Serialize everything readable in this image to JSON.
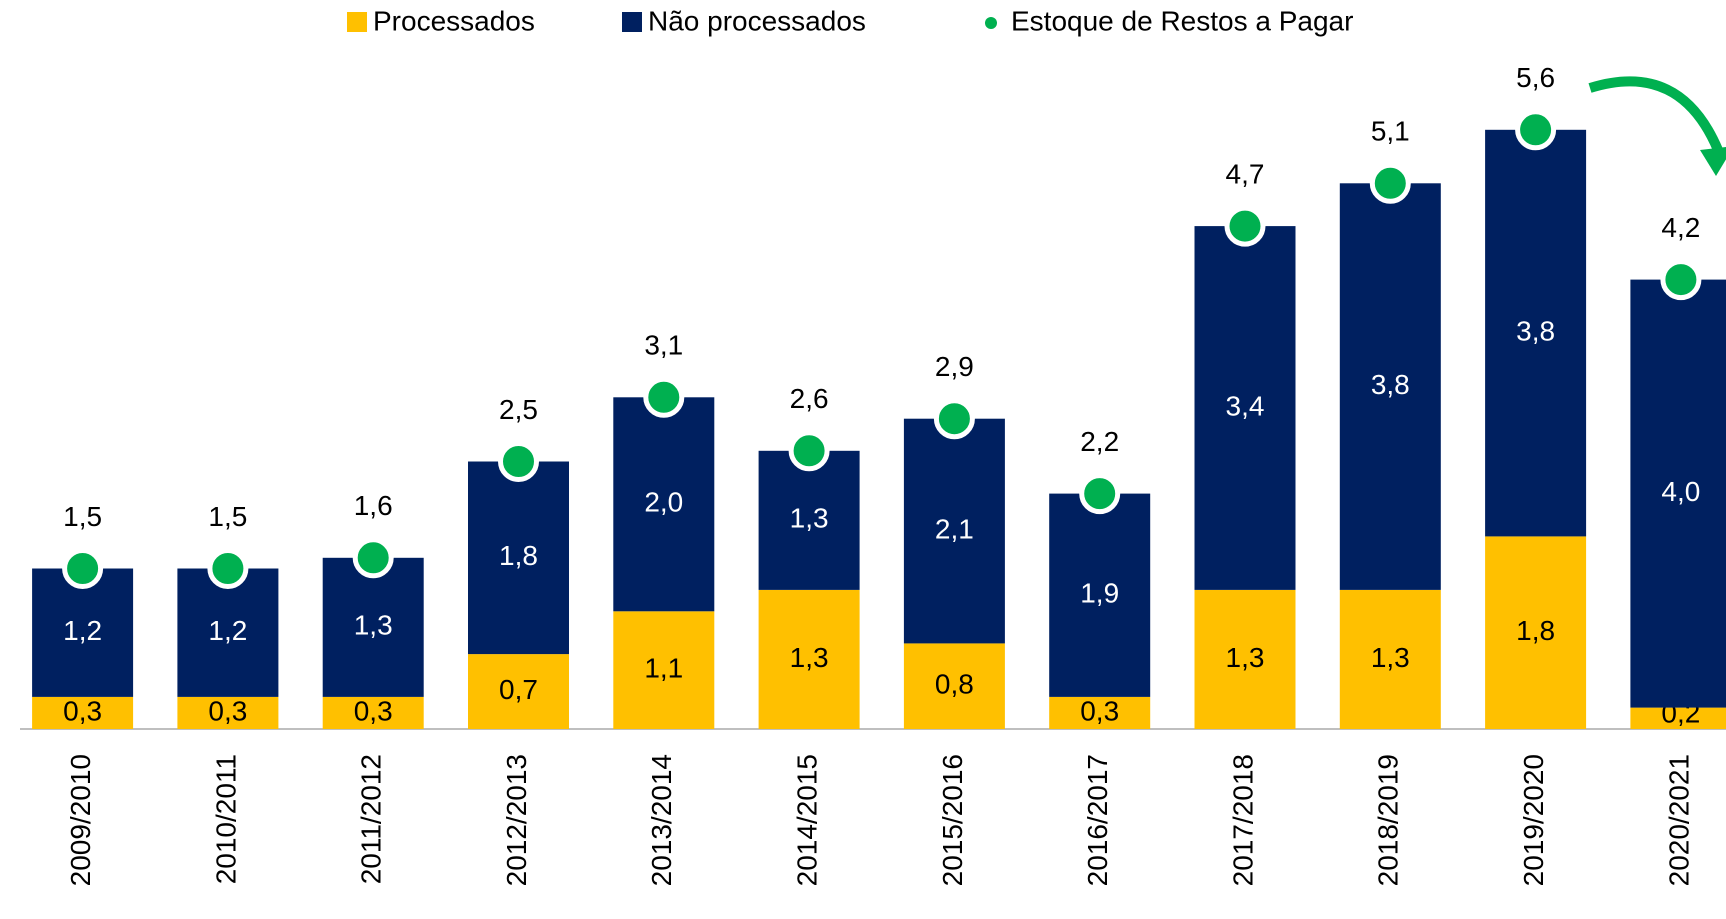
{
  "chart_data": {
    "type": "stacked-bar-dot",
    "categories": [
      "2009/2010",
      "2010/2011",
      "2011/2012",
      "2012/2013",
      "2013/2014",
      "2014/2015",
      "2015/2016",
      "2016/2017",
      "2017/2018",
      "2018/2019",
      "2019/2020",
      "2020/2021"
    ],
    "series": [
      {
        "name": "Processados",
        "color": "#FFC000",
        "values": [
          0.3,
          0.3,
          0.3,
          0.7,
          1.1,
          1.3,
          0.8,
          0.3,
          1.3,
          1.3,
          1.8,
          0.2
        ],
        "value_labels": [
          "0,3",
          "0,3",
          "0,3",
          "0,7",
          "1,1",
          "1,3",
          "0,8",
          "0,3",
          "1,3",
          "1,3",
          "1,8",
          "0,2"
        ]
      },
      {
        "name": "Não processados",
        "color": "#002060",
        "values": [
          1.2,
          1.2,
          1.3,
          1.8,
          2.0,
          1.3,
          2.1,
          1.9,
          3.4,
          3.8,
          3.8,
          4.0
        ],
        "value_labels": [
          "1,2",
          "1,2",
          "1,3",
          "1,8",
          "2,0",
          "1,3",
          "2,1",
          "1,9",
          "3,4",
          "3,8",
          "3,8",
          "4,0"
        ]
      },
      {
        "name": "Estoque de Restos a Pagar",
        "color": "#00B050",
        "values": [
          1.5,
          1.5,
          1.6,
          2.5,
          3.1,
          2.6,
          2.9,
          2.2,
          4.7,
          5.1,
          5.6,
          4.2
        ],
        "value_labels": [
          "1,5",
          "1,5",
          "1,6",
          "2,5",
          "3,1",
          "2,6",
          "2,9",
          "2,2",
          "4,7",
          "5,1",
          "5,6",
          "4,2"
        ]
      }
    ]
  }
}
